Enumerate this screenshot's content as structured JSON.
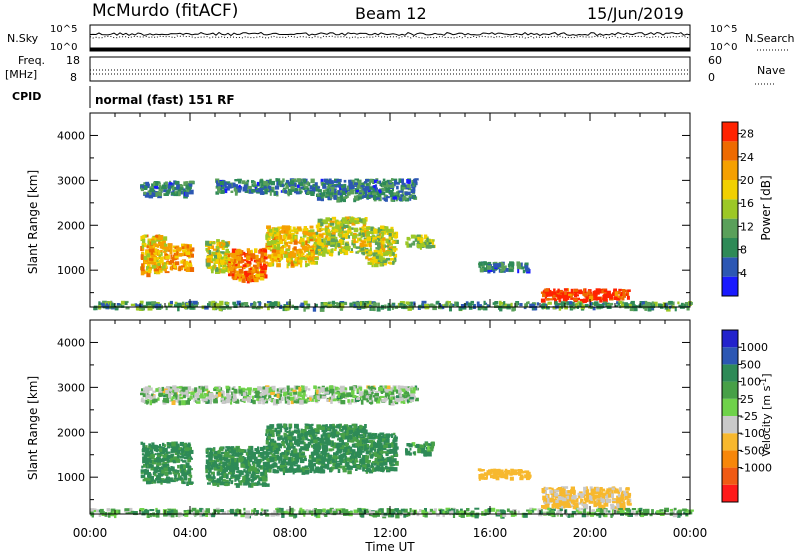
{
  "header": {
    "station": "McMurdo (fitACF)",
    "beam": "Beam 12",
    "date": "15/Jun/2019"
  },
  "top_panels": {
    "nsky_label": "N.Sky",
    "nsky_ticks": [
      "10^5",
      "10^0"
    ],
    "nsearch_label": "N.Search",
    "nsearch_ticks": [
      "10^5",
      "10^0"
    ],
    "freq_label": "Freq.",
    "freq_unit": "[MHz]",
    "freq_ticks": [
      "18",
      "8"
    ],
    "nave_label": "Nave",
    "nave_ticks": [
      "60",
      "0"
    ],
    "cpid_label": "CPID",
    "cpid_value": "normal (fast) 151 RF"
  },
  "colors": {
    "power": [
      "#1a1aff",
      "#2c57b3",
      "#2e8a57",
      "#5aa05a",
      "#9cc826",
      "#f2d000",
      "#f5a000",
      "#ee6a00",
      "#ff2200"
    ],
    "velocity": [
      "#ff1a1a",
      "#f05a14",
      "#f7870a",
      "#f7b82e",
      "#c9c9c9",
      "#6fd24a",
      "#47a047",
      "#2e8a57",
      "#2c57b3",
      "#2222cc"
    ]
  },
  "chart_data": [
    {
      "type": "heatmap",
      "title": "",
      "xlabel": "Time UT",
      "ylabel": "Slant Range [km]",
      "xlim": [
        "00:00",
        "24:00"
      ],
      "ylim": [
        180,
        4500
      ],
      "x_ticks": [
        "00:00",
        "04:00",
        "08:00",
        "12:00",
        "16:00",
        "20:00",
        "00:00"
      ],
      "y_ticks": [
        "1000",
        "2000",
        "3000",
        "4000"
      ],
      "colorbar": {
        "label": "Power [dB]",
        "range": [
          0,
          30
        ],
        "ticks": [
          "4",
          "8",
          "12",
          "16",
          "20",
          "24",
          "28"
        ]
      },
      "regions": [
        {
          "t": [
            2.0,
            3.0
          ],
          "r": [
            950,
            1800
          ],
          "power": 20
        },
        {
          "t": [
            3.0,
            4.0
          ],
          "r": [
            1050,
            1600
          ],
          "power": 22
        },
        {
          "t": [
            4.6,
            5.5
          ],
          "r": [
            1000,
            1700
          ],
          "power": 17
        },
        {
          "t": [
            5.5,
            7.0
          ],
          "r": [
            800,
            1500
          ],
          "power": 24
        },
        {
          "t": [
            7.0,
            9.0
          ],
          "r": [
            1150,
            2000
          ],
          "power": 19
        },
        {
          "t": [
            9.0,
            11.0
          ],
          "r": [
            1400,
            2200
          ],
          "power": 16
        },
        {
          "t": [
            11.0,
            12.2
          ],
          "r": [
            1150,
            2000
          ],
          "power": 16
        },
        {
          "t": [
            12.6,
            13.7
          ],
          "r": [
            1550,
            1800
          ],
          "power": 14
        },
        {
          "t": [
            2.0,
            4.0
          ],
          "r": [
            2700,
            3000
          ],
          "power": 8
        },
        {
          "t": [
            5.0,
            9.0
          ],
          "r": [
            2750,
            3050
          ],
          "power": 8
        },
        {
          "t": [
            9.0,
            13.0
          ],
          "r": [
            2600,
            3050
          ],
          "power": 8
        },
        {
          "t": [
            15.5,
            17.5
          ],
          "r": [
            1000,
            1200
          ],
          "power": 8
        },
        {
          "t": [
            18.0,
            21.5
          ],
          "r": [
            350,
            600
          ],
          "power": 28
        },
        {
          "t": [
            0.0,
            24.0
          ],
          "r": [
            180,
            320
          ],
          "power": 10
        }
      ]
    },
    {
      "type": "heatmap",
      "title": "",
      "xlabel": "Time UT",
      "ylabel": "Slant Range [km]",
      "xlim": [
        "00:00",
        "24:00"
      ],
      "ylim": [
        180,
        4500
      ],
      "x_ticks": [
        "00:00",
        "04:00",
        "08:00",
        "12:00",
        "16:00",
        "20:00",
        "00:00"
      ],
      "y_ticks": [
        "1000",
        "2000",
        "3000",
        "4000"
      ],
      "colorbar": {
        "label": "Velocity [m s",
        "label_sup": "-1",
        "label_end": "]",
        "ticks": [
          "1000",
          "500",
          "100",
          "25",
          "-25",
          "-100",
          "-500",
          "-1000"
        ]
      },
      "regions": [
        {
          "t": [
            2.0,
            4.0
          ],
          "r": [
            900,
            1800
          ],
          "velocity": 150
        },
        {
          "t": [
            4.6,
            7.0
          ],
          "r": [
            850,
            1700
          ],
          "velocity": 150
        },
        {
          "t": [
            7.0,
            11.0
          ],
          "r": [
            1150,
            2200
          ],
          "velocity": 150
        },
        {
          "t": [
            11.0,
            12.2
          ],
          "r": [
            1150,
            2000
          ],
          "velocity": 150
        },
        {
          "t": [
            12.6,
            13.7
          ],
          "r": [
            1550,
            1800
          ],
          "velocity": 120
        },
        {
          "t": [
            2.0,
            13.0
          ],
          "r": [
            2700,
            3050
          ],
          "velocity": 0
        },
        {
          "t": [
            15.5,
            17.5
          ],
          "r": [
            1000,
            1200
          ],
          "velocity": -300
        },
        {
          "t": [
            18.0,
            21.5
          ],
          "r": [
            350,
            800
          ],
          "velocity": -150
        },
        {
          "t": [
            0.0,
            24.0
          ],
          "r": [
            180,
            320
          ],
          "velocity": 40
        }
      ]
    }
  ]
}
